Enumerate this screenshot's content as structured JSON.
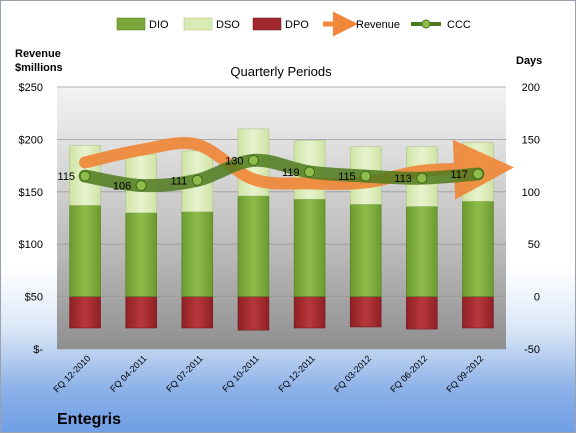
{
  "company": "Entegris",
  "chart_data": {
    "type": "bar",
    "title": "Quarterly Periods",
    "y_left_label_line1": "Revenue",
    "y_left_label_line2": "$millions",
    "y_right_label": "Days",
    "y_left_ticks": [
      "$-",
      "$50",
      "$100",
      "$150",
      "$200",
      "$250"
    ],
    "y_right_ticks": [
      "-50",
      "0",
      "50",
      "100",
      "150",
      "200"
    ],
    "ylim_left": [
      0,
      250
    ],
    "ylim_right": [
      -50,
      200
    ],
    "categories": [
      "FQ 12-2010",
      "FQ 04-2011",
      "FQ 07-2011",
      "FQ 10-2011",
      "FQ 12-2011",
      "FQ 03-2012",
      "FQ 06-2012",
      "FQ 09-2012"
    ],
    "legend": [
      "DIO",
      "DSO",
      "DPO",
      "Revenue",
      "CCC"
    ],
    "series": [
      {
        "name": "DIO",
        "axis": "right",
        "color": "#7aa83a",
        "values": [
          87,
          80,
          81,
          96,
          93,
          88,
          86,
          91
        ]
      },
      {
        "name": "DSO",
        "axis": "right",
        "color": "#d9ebb5",
        "values": [
          57,
          56,
          58,
          64,
          56,
          55,
          57,
          56
        ]
      },
      {
        "name": "DPO",
        "axis": "right",
        "color": "#a0272b",
        "values": [
          -30,
          -30,
          -30,
          -32,
          -30,
          -29,
          -31,
          -30
        ]
      },
      {
        "name": "Revenue",
        "axis": "left",
        "color": "#f0883a",
        "values": [
          178,
          190,
          195,
          162,
          158,
          159,
          170,
          172
        ]
      },
      {
        "name": "CCC",
        "axis": "right",
        "color": "#4f7a1e",
        "values": [
          115,
          106,
          111,
          130,
          119,
          115,
          113,
          117
        ]
      }
    ],
    "ccc_labels": [
      "115",
      "106",
      "111",
      "130",
      "119",
      "115",
      "113",
      "117"
    ],
    "grid": true,
    "legend_position": "top"
  }
}
